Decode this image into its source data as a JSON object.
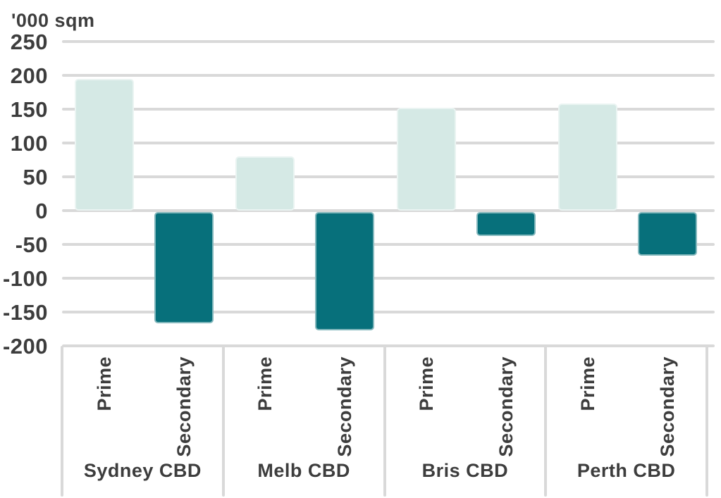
{
  "header": {
    "unit_label": "'000 sqm"
  },
  "colors": {
    "prime": "#d5e9e5",
    "secondary": "#07707b",
    "grid": "#d9d9d9",
    "text": "#3d3d3d",
    "background": "#ffffff"
  },
  "chart_data": {
    "type": "bar",
    "title": "",
    "unit_label": "'000 sqm",
    "xlabel": "",
    "ylabel": "'000 sqm",
    "categories": [
      "Sydney CBD",
      "Melb CBD",
      "Bris CBD",
      "Perth CBD"
    ],
    "series": [
      {
        "name": "Prime",
        "color": "#d5e9e5",
        "values": [
          195,
          80,
          152,
          158
        ]
      },
      {
        "name": "Secondary",
        "color": "#07707b",
        "values": [
          -165,
          -175,
          -35,
          -65
        ]
      }
    ],
    "ylim": [
      -200,
      250
    ],
    "ytick_step": 50,
    "yticks": [
      250,
      200,
      150,
      100,
      50,
      0,
      -50,
      -100,
      -150,
      -200
    ],
    "grid": true,
    "legend_position": "none",
    "series_label_style": "rotated-below-axis",
    "category_style": "boxed-group-labels"
  }
}
